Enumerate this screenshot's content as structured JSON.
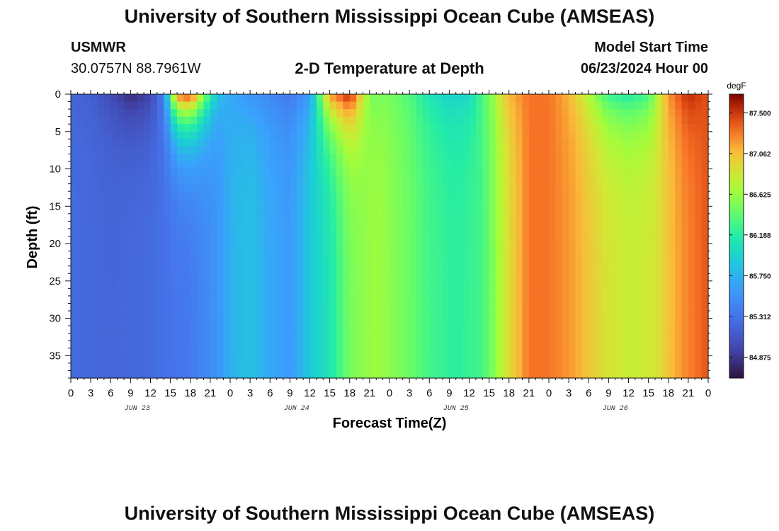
{
  "header": {
    "title_top": "University of Southern Mississippi Ocean Cube (AMSEAS)",
    "station": "USMWR",
    "coords": "30.0757N  88.7961W",
    "subtitle": "2-D Temperature at Depth",
    "model_start_label": "Model Start Time",
    "model_start_value": "06/23/2024 Hour 00",
    "title_bottom": "University of Southern Mississippi Ocean Cube (AMSEAS)"
  },
  "chart_data": {
    "type": "heatmap",
    "title": "2-D Temperature at Depth",
    "xlabel": "Forecast Time(Z)",
    "ylabel": "Depth (ft)",
    "x_hours_range": [
      0,
      96
    ],
    "ylim": [
      0,
      38
    ],
    "x_tick_labels": [
      "0",
      "3",
      "6",
      "9",
      "12",
      "15",
      "18",
      "21",
      "0",
      "3",
      "6",
      "9",
      "12",
      "15",
      "18",
      "21",
      "0",
      "3",
      "6",
      "9",
      "12",
      "15",
      "18",
      "21",
      "0",
      "3",
      "6",
      "9",
      "12",
      "15",
      "18",
      "21",
      "0"
    ],
    "day_labels": [
      "JUN 23",
      "JUN 24",
      "JUN 25",
      "JUN 26"
    ],
    "y_ticks": [
      0,
      5,
      10,
      15,
      20,
      25,
      30,
      35
    ],
    "y_tick_labels": [
      "0",
      "5",
      "10",
      "15",
      "20",
      "25",
      "30",
      "35"
    ],
    "colorbar": {
      "unit": "degF",
      "min": 84.65,
      "max": 87.7,
      "tick_values": [
        87.5,
        87.062,
        86.625,
        86.188,
        85.75,
        85.312,
        84.875
      ],
      "tick_labels": [
        "87.500",
        "87.062",
        "86.625",
        "86.188",
        "85.750",
        "85.312",
        "84.875"
      ]
    },
    "surface_temp_degF": [
      [
        0,
        85.2
      ],
      [
        3,
        85.15
      ],
      [
        6,
        85.0
      ],
      [
        9,
        84.8
      ],
      [
        12,
        84.95
      ],
      [
        14,
        85.4
      ],
      [
        16,
        87.3
      ],
      [
        18,
        87.5
      ],
      [
        20,
        86.6
      ],
      [
        22,
        85.85
      ],
      [
        24,
        85.7
      ],
      [
        27,
        85.55
      ],
      [
        30,
        85.45
      ],
      [
        33,
        85.35
      ],
      [
        36,
        85.6
      ],
      [
        39,
        87.2
      ],
      [
        42,
        87.6
      ],
      [
        45,
        86.5
      ],
      [
        48,
        86.5
      ],
      [
        51,
        86.35
      ],
      [
        54,
        86.1
      ],
      [
        57,
        85.95
      ],
      [
        60,
        86.0
      ],
      [
        63,
        86.5
      ],
      [
        66,
        87.1
      ],
      [
        69,
        87.3
      ],
      [
        72,
        87.3
      ],
      [
        75,
        87.1
      ],
      [
        78,
        86.7
      ],
      [
        81,
        86.25
      ],
      [
        84,
        86.15
      ],
      [
        87,
        86.3
      ],
      [
        90,
        87.2
      ],
      [
        93,
        87.55
      ],
      [
        96,
        87.4
      ]
    ],
    "bottom_temp_degF": [
      [
        0,
        85.25
      ],
      [
        6,
        85.2
      ],
      [
        12,
        85.25
      ],
      [
        18,
        85.35
      ],
      [
        22,
        85.55
      ],
      [
        24,
        85.75
      ],
      [
        27,
        85.85
      ],
      [
        30,
        85.7
      ],
      [
        33,
        85.6
      ],
      [
        36,
        85.9
      ],
      [
        39,
        86.1
      ],
      [
        42,
        86.5
      ],
      [
        46,
        86.65
      ],
      [
        50,
        86.5
      ],
      [
        54,
        86.3
      ],
      [
        58,
        86.2
      ],
      [
        62,
        86.3
      ],
      [
        66,
        86.9
      ],
      [
        69,
        87.3
      ],
      [
        72,
        87.3
      ],
      [
        76,
        87.15
      ],
      [
        80,
        86.9
      ],
      [
        84,
        86.8
      ],
      [
        88,
        86.85
      ],
      [
        92,
        87.2
      ],
      [
        96,
        87.4
      ]
    ]
  }
}
